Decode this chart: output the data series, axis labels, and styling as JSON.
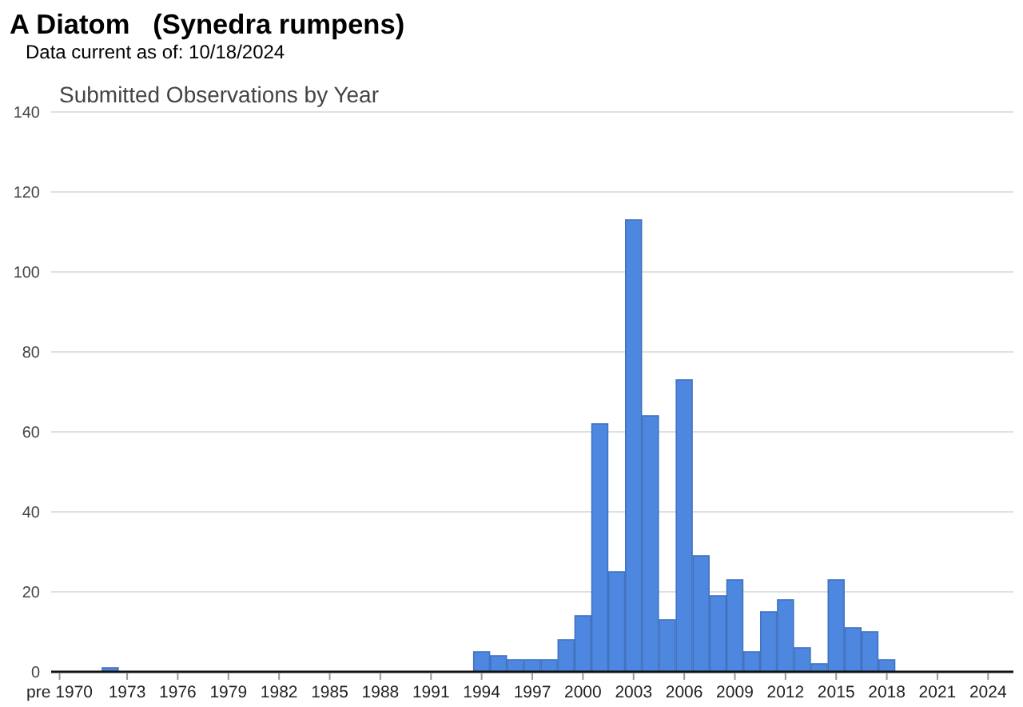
{
  "chart_data": {
    "type": "bar",
    "title": "A Diatom   (Synedra rumpens)",
    "subtitle": "Data current as of: 10/18/2024",
    "annotations": [
      "Submitted Observations by Year"
    ],
    "categories": [
      "pre 1970",
      null,
      null,
      null,
      "1973",
      null,
      null,
      "1976",
      null,
      null,
      "1979",
      null,
      null,
      "1982",
      null,
      null,
      "1985",
      null,
      null,
      "1988",
      null,
      null,
      "1991",
      null,
      null,
      "1994",
      null,
      null,
      "1997",
      null,
      null,
      "2000",
      null,
      null,
      "2003",
      null,
      null,
      "2006",
      null,
      null,
      "2009",
      null,
      null,
      "2012",
      null,
      null,
      "2015",
      null,
      null,
      "2018",
      null,
      null,
      "2021",
      null,
      null,
      "2024",
      null
    ],
    "values": [
      0,
      0,
      0,
      1,
      0,
      0,
      0,
      0,
      0,
      0,
      0,
      0,
      0,
      0,
      0,
      0,
      0,
      0,
      0,
      0,
      0,
      0,
      0,
      0,
      0,
      5,
      4,
      3,
      3,
      3,
      8,
      14,
      62,
      25,
      113,
      64,
      13,
      73,
      29,
      19,
      23,
      5,
      15,
      18,
      6,
      2,
      23,
      11,
      10,
      3,
      0,
      0,
      0,
      0,
      0,
      0,
      0
    ],
    "color": "#4d87e0",
    "ylim": [
      0,
      140
    ],
    "yticks": [
      0,
      20,
      40,
      60,
      80,
      100,
      120,
      140
    ],
    "grid": "y"
  }
}
